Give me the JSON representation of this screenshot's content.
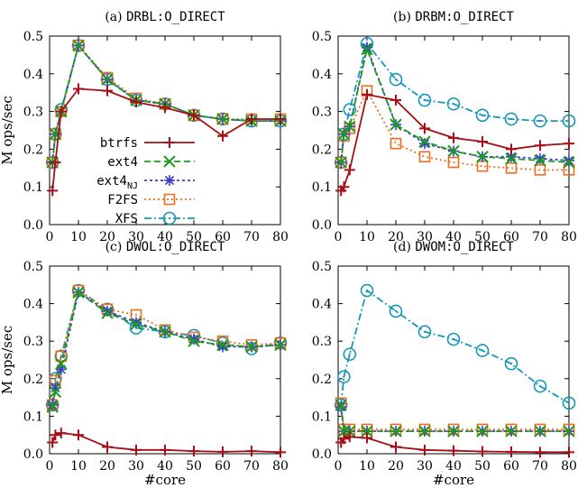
{
  "chart_data": [
    {
      "type": "line",
      "title": "(a) DRBL:O_DIRECT",
      "title_parts": [
        "(a) ",
        "DRBL:O_DIRECT"
      ],
      "xlabel": "",
      "ylabel": "M ops/sec",
      "xlim": [
        0,
        80
      ],
      "ylim": [
        0,
        0.5
      ],
      "x_ticks": [
        0,
        10,
        20,
        30,
        40,
        50,
        60,
        70,
        80
      ],
      "y_ticks": [
        "0.0",
        "0.1",
        "0.2",
        "0.3",
        "0.4",
        "0.5"
      ],
      "x": [
        1,
        2,
        4,
        10,
        20,
        30,
        40,
        50,
        60,
        70,
        80
      ],
      "legend": "inside-center",
      "series": [
        {
          "name": "btrfs",
          "values": [
            0.09,
            0.165,
            0.3,
            0.36,
            0.355,
            0.325,
            0.31,
            0.29,
            0.235,
            0.28,
            0.28
          ]
        },
        {
          "name": "ext4",
          "values": [
            0.165,
            0.24,
            0.3,
            0.475,
            0.385,
            0.33,
            0.32,
            0.29,
            0.28,
            0.275,
            0.275
          ]
        },
        {
          "name": "ext4NJ",
          "values": [
            0.165,
            0.24,
            0.3,
            0.475,
            0.385,
            0.33,
            0.32,
            0.29,
            0.28,
            0.275,
            0.275
          ]
        },
        {
          "name": "F2FS",
          "values": [
            0.165,
            0.24,
            0.3,
            0.475,
            0.39,
            0.335,
            0.32,
            0.29,
            0.28,
            0.28,
            0.28
          ]
        },
        {
          "name": "XFS",
          "values": [
            0.165,
            0.24,
            0.305,
            0.475,
            0.385,
            0.33,
            0.32,
            0.29,
            0.28,
            0.275,
            0.275
          ]
        }
      ]
    },
    {
      "type": "line",
      "title": "(b) DRBM:O_DIRECT",
      "title_parts": [
        "(b) ",
        "DRBM:O_DIRECT"
      ],
      "xlabel": "",
      "ylabel": "",
      "xlim": [
        0,
        80
      ],
      "ylim": [
        0,
        0.5
      ],
      "x_ticks": [
        0,
        10,
        20,
        30,
        40,
        50,
        60,
        70,
        80
      ],
      "y_ticks": [
        "0.0",
        "0.1",
        "0.2",
        "0.3",
        "0.4",
        "0.5"
      ],
      "x": [
        1,
        2,
        4,
        10,
        20,
        30,
        40,
        50,
        60,
        70,
        80
      ],
      "series": [
        {
          "name": "btrfs",
          "values": [
            0.09,
            0.1,
            0.145,
            0.345,
            0.33,
            0.255,
            0.23,
            0.22,
            0.2,
            0.21,
            0.215
          ]
        },
        {
          "name": "ext4",
          "values": [
            0.165,
            0.24,
            0.26,
            0.465,
            0.265,
            0.22,
            0.195,
            0.18,
            0.175,
            0.17,
            0.165
          ]
        },
        {
          "name": "ext4NJ",
          "values": [
            0.165,
            0.24,
            0.26,
            0.47,
            0.265,
            0.215,
            0.195,
            0.18,
            0.18,
            0.175,
            0.17
          ]
        },
        {
          "name": "F2FS",
          "values": [
            0.165,
            0.235,
            0.255,
            0.355,
            0.215,
            0.18,
            0.165,
            0.155,
            0.15,
            0.145,
            0.145
          ]
        },
        {
          "name": "XFS",
          "values": [
            0.165,
            0.24,
            0.305,
            0.48,
            0.385,
            0.33,
            0.32,
            0.29,
            0.28,
            0.275,
            0.275
          ]
        }
      ]
    },
    {
      "type": "line",
      "title": "(c) DWOL:O_DIRECT",
      "title_parts": [
        "(c) ",
        "DWOL:O_DIRECT"
      ],
      "xlabel": "#core",
      "ylabel": "M ops/sec",
      "xlim": [
        0,
        80
      ],
      "ylim": [
        0,
        0.5
      ],
      "x_ticks": [
        0,
        10,
        20,
        30,
        40,
        50,
        60,
        70,
        80
      ],
      "y_ticks": [
        "0.0",
        "0.1",
        "0.2",
        "0.3",
        "0.4",
        "0.5"
      ],
      "x": [
        1,
        2,
        4,
        10,
        20,
        30,
        40,
        50,
        60,
        70,
        80
      ],
      "series": [
        {
          "name": "btrfs",
          "values": [
            0.03,
            0.05,
            0.055,
            0.05,
            0.018,
            0.01,
            0.01,
            0.007,
            0.005,
            0.007,
            0.004
          ]
        },
        {
          "name": "ext4",
          "values": [
            0.125,
            0.165,
            0.24,
            0.43,
            0.375,
            0.345,
            0.325,
            0.3,
            0.29,
            0.285,
            0.29
          ]
        },
        {
          "name": "ext4NJ",
          "values": [
            0.13,
            0.175,
            0.225,
            0.43,
            0.38,
            0.35,
            0.325,
            0.305,
            0.285,
            0.285,
            0.29
          ]
        },
        {
          "name": "F2FS",
          "values": [
            0.13,
            0.195,
            0.26,
            0.435,
            0.385,
            0.37,
            0.33,
            0.31,
            0.3,
            0.29,
            0.295
          ]
        },
        {
          "name": "XFS",
          "values": [
            0.13,
            0.2,
            0.26,
            0.435,
            0.385,
            0.335,
            0.325,
            0.315,
            0.295,
            0.28,
            0.295
          ]
        }
      ]
    },
    {
      "type": "line",
      "title": "(d) DWOM:O_DIRECT",
      "title_parts": [
        "(d) ",
        "DWOM:O_DIRECT"
      ],
      "xlabel": "#core",
      "ylabel": "",
      "xlim": [
        0,
        80
      ],
      "ylim": [
        0,
        0.5
      ],
      "x_ticks": [
        0,
        10,
        20,
        30,
        40,
        50,
        60,
        70,
        80
      ],
      "y_ticks": [
        "0.0",
        "0.1",
        "0.2",
        "0.3",
        "0.4",
        "0.5"
      ],
      "x": [
        1,
        2,
        4,
        10,
        20,
        30,
        40,
        50,
        60,
        70,
        80
      ],
      "series": [
        {
          "name": "btrfs",
          "values": [
            0.03,
            0.04,
            0.045,
            0.042,
            0.018,
            0.01,
            0.008,
            0.006,
            0.005,
            0.004,
            0.004
          ]
        },
        {
          "name": "ext4",
          "values": [
            0.13,
            0.06,
            0.06,
            0.06,
            0.06,
            0.06,
            0.06,
            0.06,
            0.06,
            0.06,
            0.06
          ]
        },
        {
          "name": "ext4NJ",
          "values": [
            0.125,
            0.06,
            0.06,
            0.06,
            0.06,
            0.06,
            0.06,
            0.06,
            0.06,
            0.06,
            0.06
          ]
        },
        {
          "name": "F2FS",
          "values": [
            0.135,
            0.065,
            0.065,
            0.065,
            0.065,
            0.065,
            0.065,
            0.065,
            0.065,
            0.065,
            0.065
          ]
        },
        {
          "name": "XFS",
          "values": [
            0.13,
            0.205,
            0.265,
            0.435,
            0.38,
            0.325,
            0.305,
            0.275,
            0.24,
            0.18,
            0.135
          ]
        }
      ]
    }
  ],
  "legend": {
    "items": [
      {
        "key": "btrfs",
        "label": "btrfs",
        "sub": ""
      },
      {
        "key": "ext4",
        "label": "ext4",
        "sub": ""
      },
      {
        "key": "ext4NJ",
        "label": "ext4",
        "sub": "NJ"
      },
      {
        "key": "F2FS",
        "label": "F2FS",
        "sub": ""
      },
      {
        "key": "XFS",
        "label": "XFS",
        "sub": ""
      }
    ]
  },
  "series_styles": {
    "btrfs": {
      "color": "#a50f15",
      "marker": "plus",
      "dash": ""
    },
    "ext4": {
      "color": "#1a9c1a",
      "marker": "x",
      "dash": "7,4"
    },
    "ext4NJ": {
      "color": "#3b3bd4",
      "marker": "asterisk",
      "dash": "3,3"
    },
    "F2FS": {
      "color": "#f26c1f",
      "marker": "square",
      "dash": "2,3"
    },
    "XFS": {
      "color": "#1697b8",
      "marker": "circle",
      "dash": "8,3,2,3"
    }
  }
}
